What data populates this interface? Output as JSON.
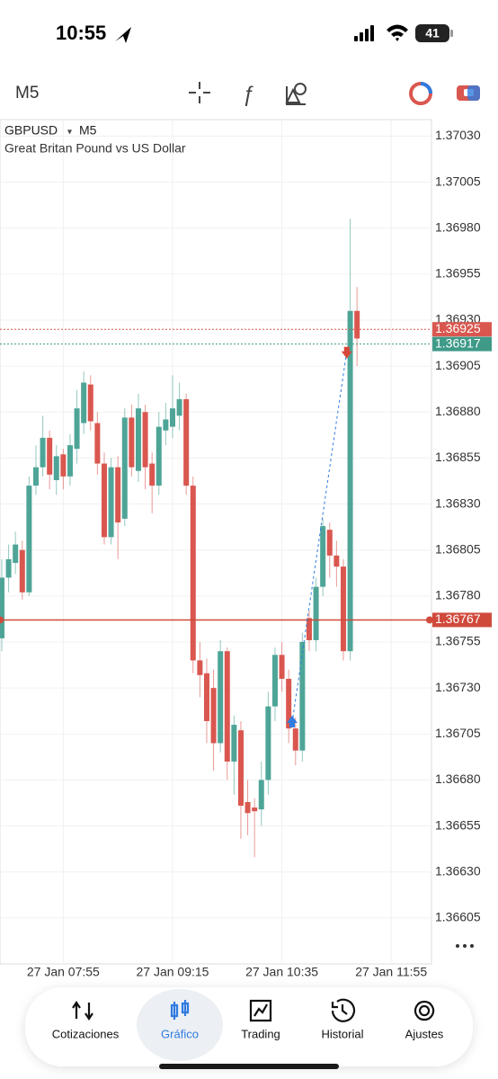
{
  "status_bar": {
    "time": "10:55",
    "battery": "41"
  },
  "toolbar": {
    "timeframe": "M5"
  },
  "chart_data": {
    "type": "candlestick",
    "symbol": "GBPUSD",
    "timeframe": "M5",
    "subtitle": "Great Britan Pound vs US Dollar",
    "open": [
      1.36757,
      1.3679,
      1.36798,
      1.36805,
      1.36782,
      1.3684,
      1.3685,
      1.36866,
      1.36843,
      1.36857,
      1.36845,
      1.3686,
      1.36874,
      1.36895,
      1.36874,
      1.36852,
      1.36812,
      1.3685,
      1.36822,
      1.36877,
      1.36848,
      1.3688,
      1.36852,
      1.3684,
      1.3687,
      1.36872,
      1.36878,
      1.36887,
      1.3684,
      1.36745,
      1.36738,
      1.3673,
      1.367,
      1.3675,
      1.3669,
      1.36707,
      1.36668,
      1.36665,
      1.36664,
      1.3668,
      1.3672,
      1.36748,
      1.36735,
      1.36708,
      1.36696,
      1.36768,
      1.36756,
      1.36785,
      1.36816,
      1.36802,
      1.36796,
      1.3675,
      1.36935
    ],
    "high": [
      1.368,
      1.36808,
      1.36815,
      1.3681,
      1.36845,
      1.36862,
      1.36878,
      1.3687,
      1.36862,
      1.3686,
      1.36868,
      1.36892,
      1.36902,
      1.369,
      1.3688,
      1.36858,
      1.36855,
      1.36856,
      1.36882,
      1.36884,
      1.3689,
      1.36884,
      1.36858,
      1.3688,
      1.36885,
      1.369,
      1.36896,
      1.3689,
      1.36845,
      1.36755,
      1.36746,
      1.3674,
      1.36756,
      1.36752,
      1.36715,
      1.36712,
      1.3668,
      1.3667,
      1.3669,
      1.36728,
      1.36752,
      1.36755,
      1.3674,
      1.36714,
      1.3676,
      1.36772,
      1.3679,
      1.36822,
      1.3682,
      1.3681,
      1.368,
      1.36985,
      1.36948
    ],
    "low": [
      1.3675,
      1.36782,
      1.36792,
      1.36778,
      1.3678,
      1.36835,
      1.36845,
      1.36838,
      1.36835,
      1.36838,
      1.3684,
      1.36852,
      1.36868,
      1.3687,
      1.36846,
      1.36808,
      1.36808,
      1.368,
      1.36818,
      1.36845,
      1.36842,
      1.36838,
      1.36825,
      1.36835,
      1.36862,
      1.36866,
      1.3687,
      1.36835,
      1.36738,
      1.36725,
      1.367,
      1.36685,
      1.36695,
      1.3668,
      1.36672,
      1.36648,
      1.3665,
      1.36638,
      1.36655,
      1.36672,
      1.36712,
      1.36728,
      1.367,
      1.36688,
      1.3669,
      1.3675,
      1.3675,
      1.3678,
      1.3679,
      1.36785,
      1.36745,
      1.36745,
      1.36905
    ],
    "close": [
      1.3679,
      1.368,
      1.36808,
      1.36782,
      1.3684,
      1.3685,
      1.36866,
      1.36846,
      1.36856,
      1.36845,
      1.36862,
      1.36882,
      1.36896,
      1.36875,
      1.36852,
      1.36812,
      1.3685,
      1.3682,
      1.36877,
      1.3685,
      1.36882,
      1.3685,
      1.3684,
      1.36872,
      1.36876,
      1.36882,
      1.36887,
      1.3684,
      1.36745,
      1.36737,
      1.36712,
      1.367,
      1.3675,
      1.3669,
      1.3671,
      1.36666,
      1.36662,
      1.36663,
      1.3668,
      1.3672,
      1.36748,
      1.36735,
      1.36708,
      1.36696,
      1.36755,
      1.36756,
      1.36785,
      1.36818,
      1.36802,
      1.36796,
      1.3675,
      1.36935,
      1.3692
    ],
    "up_color": "#4ea597",
    "down_color": "#d9574f",
    "xlim": [
      -0.26,
      62.9
    ],
    "xticks": [
      {
        "value": 9,
        "label": "27 Jan 07:55"
      },
      {
        "value": 25,
        "label": "27 Jan 09:15"
      },
      {
        "value": 41,
        "label": "27 Jan 10:35"
      },
      {
        "value": 57,
        "label": "27 Jan 11:55"
      }
    ],
    "ylim": [
      1.3658,
      1.37039
    ],
    "yticks": [
      {
        "value": 1.3703,
        "label": "1.37030"
      },
      {
        "value": 1.37005,
        "label": "1.37005"
      },
      {
        "value": 1.3698,
        "label": "1.36980"
      },
      {
        "value": 1.36955,
        "label": "1.36955"
      },
      {
        "value": 1.3693,
        "label": "1.36930"
      },
      {
        "value": 1.36905,
        "label": "1.36905"
      },
      {
        "value": 1.3688,
        "label": "1.36880"
      },
      {
        "value": 1.36855,
        "label": "1.36855"
      },
      {
        "value": 1.3683,
        "label": "1.36830"
      },
      {
        "value": 1.36805,
        "label": "1.36805"
      },
      {
        "value": 1.3678,
        "label": "1.36780"
      },
      {
        "value": 1.36755,
        "label": "1.36755"
      },
      {
        "value": 1.3673,
        "label": "1.36730"
      },
      {
        "value": 1.36705,
        "label": "1.36705"
      },
      {
        "value": 1.3668,
        "label": "1.36680"
      },
      {
        "value": 1.36655,
        "label": "1.36655"
      },
      {
        "value": 1.3663,
        "label": "1.36630"
      },
      {
        "value": 1.36605,
        "label": "1.36605"
      }
    ],
    "grid": true,
    "price_lines": [
      {
        "value": 1.36925,
        "color": "#d9574f",
        "style": "dashed"
      },
      {
        "value": 1.36917,
        "color": "#3f9a88",
        "style": "dashed"
      },
      {
        "value": 1.36767,
        "color": "#d04a3c",
        "style": "solid"
      }
    ],
    "trade_markers": [
      {
        "x": 42.5,
        "value": 1.36711,
        "color": "#2f7be0"
      },
      {
        "x": 50.5,
        "value": 1.36913,
        "color": "#d9463a"
      }
    ]
  },
  "nav": {
    "items": [
      "Cotizaciones",
      "Gráfico",
      "Trading",
      "Historial",
      "Ajustes"
    ],
    "active": 1
  }
}
